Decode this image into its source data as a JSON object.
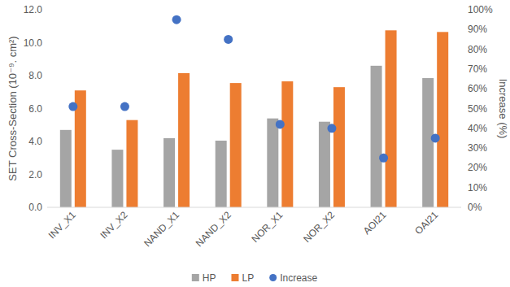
{
  "chart_data": {
    "type": "bar",
    "y_label": "SET Cross-Section (10⁻⁹. cm²)",
    "y2_label": "Increase (%)",
    "categories": [
      "INV_X1",
      "INV_X2",
      "NAND_X1",
      "NAND_X2",
      "NOR_X1",
      "NOR_X2",
      "AOI21",
      "OAI21"
    ],
    "series": [
      {
        "name": "HP",
        "color": "#a5a5a5",
        "values": [
          4.7,
          3.5,
          4.2,
          4.05,
          5.4,
          5.2,
          8.6,
          7.85
        ]
      },
      {
        "name": "LP",
        "color": "#ed7d31",
        "values": [
          7.1,
          5.3,
          8.15,
          7.55,
          7.65,
          7.3,
          10.75,
          10.65
        ]
      },
      {
        "name": "Increase",
        "color": "#4472c4",
        "type": "scatter",
        "marker": "circle",
        "axis": "y2",
        "values": [
          51,
          51,
          95,
          85,
          42,
          40,
          25,
          35
        ]
      }
    ],
    "ylim": [
      0,
      12
    ],
    "yticks": [
      {
        "value": 0,
        "label": "0.0"
      },
      {
        "value": 2,
        "label": "2.0"
      },
      {
        "value": 4,
        "label": "4.0"
      },
      {
        "value": 6,
        "label": "6.0"
      },
      {
        "value": 8,
        "label": "8.0"
      },
      {
        "value": 10,
        "label": "10.0"
      },
      {
        "value": 12,
        "label": "12.0"
      }
    ],
    "y2lim": [
      0,
      100
    ],
    "y2ticks": [
      {
        "value": 0,
        "label": "0%"
      },
      {
        "value": 10,
        "label": "10%"
      },
      {
        "value": 20,
        "label": "20%"
      },
      {
        "value": 30,
        "label": "30%"
      },
      {
        "value": 40,
        "label": "40%"
      },
      {
        "value": 50,
        "label": "50%"
      },
      {
        "value": 60,
        "label": "60%"
      },
      {
        "value": 70,
        "label": "70%"
      },
      {
        "value": 80,
        "label": "80%"
      },
      {
        "value": 90,
        "label": "90%"
      },
      {
        "value": 100,
        "label": "100%"
      }
    ],
    "grid": false,
    "legend": "bottom"
  }
}
